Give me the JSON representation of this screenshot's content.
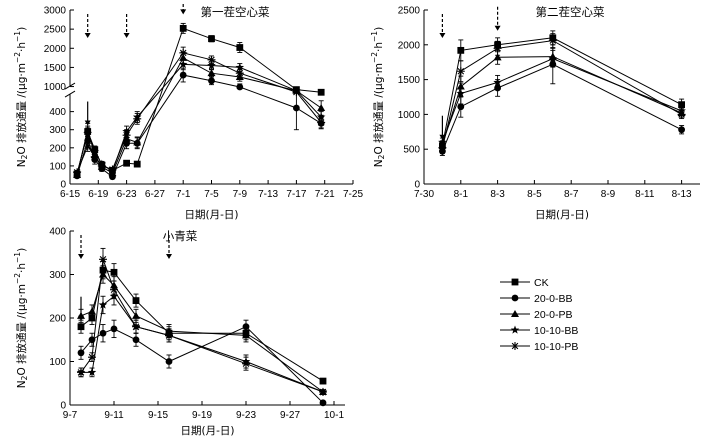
{
  "legend": [
    "CK",
    "20-0-BB",
    "20-0-PB",
    "10-10-BB",
    "10-10-PB"
  ],
  "chart_data": [
    {
      "type": "line",
      "title": "第一茬空心菜",
      "xlabel": "日期(月-日)",
      "ylabel": "N2O排放通量/(μg·m⁻²·h⁻¹)",
      "ylabel_parts": [
        "N",
        "2",
        "O 排放通量 /(μg·m",
        "−2",
        "·h",
        "−1",
        ")"
      ],
      "xticks": [
        {
          "v": 0,
          "label": "6-15"
        },
        {
          "v": 4,
          "label": "6-19"
        },
        {
          "v": 8,
          "label": "6-23"
        },
        {
          "v": 12,
          "label": "6-27"
        },
        {
          "v": 16,
          "label": "7-1"
        },
        {
          "v": 20,
          "label": "7-5"
        },
        {
          "v": 24,
          "label": "7-9"
        },
        {
          "v": 28,
          "label": "7-13"
        },
        {
          "v": 32,
          "label": "7-17"
        },
        {
          "v": 36,
          "label": "7-21"
        },
        {
          "v": 40,
          "label": "7-25"
        }
      ],
      "xlim": [
        0,
        40
      ],
      "ylim": [
        0,
        3000
      ],
      "y_break": [
        500,
        1000
      ],
      "yticks": [
        0,
        100,
        200,
        300,
        400,
        1000,
        1500,
        2000,
        2500,
        3000
      ],
      "ytick_labels": [
        "0",
        "100",
        "200",
        "300",
        "400",
        "1000",
        "1500",
        "2000",
        "2500",
        "3000"
      ],
      "arrows": [
        {
          "x": 2.5,
          "type": "solid"
        },
        {
          "x": 2.5,
          "type": "dashed"
        },
        {
          "x": 8,
          "type": "dashed"
        },
        {
          "x": 16,
          "type": "dashed"
        }
      ],
      "series": [
        {
          "name": "CK",
          "x": [
            1,
            2.5,
            3.5,
            4.5,
            6,
            8,
            9.5,
            16,
            20,
            24,
            32,
            35.5
          ],
          "y": [
            55,
            290,
            190,
            105,
            75,
            115,
            110,
            2520,
            2250,
            2020,
            780,
            590
          ],
          "err": [
            10,
            30,
            20,
            15,
            10,
            10,
            10,
            130,
            80,
            130,
            60,
            20
          ]
        },
        {
          "name": "20-0-BB",
          "x": [
            1,
            2.5,
            3.5,
            4.5,
            6,
            8,
            9.5,
            16,
            20,
            24,
            32,
            35.5
          ],
          "y": [
            45,
            240,
            135,
            85,
            40,
            225,
            225,
            1300,
            1150,
            970,
            420,
            335
          ],
          "err": [
            10,
            40,
            25,
            15,
            8,
            30,
            30,
            180,
            100,
            100,
            120,
            30
          ]
        },
        {
          "name": "20-0-PB",
          "x": [
            1,
            2.5,
            3.5,
            4.5,
            6,
            8,
            9.5,
            16,
            20,
            24,
            32,
            35.5
          ],
          "y": [
            50,
            300,
            160,
            95,
            60,
            250,
            230,
            1750,
            1350,
            1250,
            700,
            420
          ],
          "err": [
            10,
            35,
            20,
            15,
            10,
            25,
            30,
            150,
            90,
            110,
            60,
            40
          ]
        },
        {
          "name": "10-10-BB",
          "x": [
            1,
            2.5,
            3.5,
            4.5,
            6,
            8,
            9.5,
            16,
            20,
            24,
            32,
            35.5
          ],
          "y": [
            60,
            280,
            180,
            110,
            70,
            290,
            370,
            1580,
            1550,
            1500,
            700,
            370
          ],
          "err": [
            10,
            30,
            20,
            15,
            10,
            30,
            30,
            140,
            90,
            100,
            50,
            30
          ]
        },
        {
          "name": "10-10-PB",
          "x": [
            1,
            2.5,
            3.5,
            4.5,
            6,
            8,
            9.5,
            16,
            20,
            24,
            32,
            35.5
          ],
          "y": [
            65,
            210,
            150,
            100,
            80,
            270,
            360,
            1880,
            1700,
            1350,
            600,
            340
          ],
          "err": [
            10,
            30,
            20,
            15,
            10,
            30,
            30,
            150,
            100,
            100,
            50,
            30
          ]
        }
      ]
    },
    {
      "type": "line",
      "title": "第二茬空心菜",
      "xlabel": "日期(月-日)",
      "ylabel": "N2O排放通量/(μg·m⁻²·h⁻¹)",
      "ylabel_parts": [
        "N",
        "2",
        "O 排放通量 /(μg·m",
        "−2",
        "·h",
        "−1",
        ")"
      ],
      "xticks": [
        {
          "v": 0,
          "label": "7-30"
        },
        {
          "v": 2,
          "label": "8-1"
        },
        {
          "v": 4,
          "label": "8-3"
        },
        {
          "v": 6,
          "label": "8-5"
        },
        {
          "v": 8,
          "label": "8-7"
        },
        {
          "v": 10,
          "label": "8-9"
        },
        {
          "v": 12,
          "label": "8-11"
        },
        {
          "v": 14,
          "label": "8-13"
        }
      ],
      "xlim": [
        0,
        15
      ],
      "ylim": [
        0,
        2500
      ],
      "yticks": [
        0,
        500,
        1000,
        1500,
        2000,
        2500
      ],
      "ytick_labels": [
        "0",
        "500",
        "1000",
        "1500",
        "2000",
        "2500"
      ],
      "arrows": [
        {
          "x": 1,
          "type": "solid"
        },
        {
          "x": 1,
          "type": "dashed"
        },
        {
          "x": 4,
          "type": "dashed"
        }
      ],
      "series": [
        {
          "name": "CK",
          "x": [
            1,
            2,
            4,
            7,
            14
          ],
          "y": [
            550,
            1920,
            2000,
            2100,
            1140
          ],
          "err": [
            60,
            150,
            100,
            100,
            80
          ]
        },
        {
          "name": "20-0-BB",
          "x": [
            1,
            2,
            4,
            7,
            14
          ],
          "y": [
            470,
            1110,
            1380,
            1720,
            780
          ],
          "err": [
            60,
            150,
            120,
            280,
            60
          ]
        },
        {
          "name": "20-0-PB",
          "x": [
            1,
            2,
            4,
            7,
            14
          ],
          "y": [
            560,
            1400,
            1820,
            1830,
            1020
          ],
          "err": [
            60,
            150,
            100,
            120,
            60
          ]
        },
        {
          "name": "10-10-BB",
          "x": [
            1,
            2,
            4,
            7,
            14
          ],
          "y": [
            600,
            1300,
            1460,
            1800,
            1050
          ],
          "err": [
            60,
            150,
            100,
            120,
            60
          ]
        },
        {
          "name": "10-10-PB",
          "x": [
            1,
            2,
            4,
            7,
            14
          ],
          "y": [
            520,
            1620,
            1950,
            2060,
            1000
          ],
          "err": [
            60,
            150,
            100,
            100,
            60
          ]
        }
      ]
    },
    {
      "type": "line",
      "title": "小青菜",
      "xlabel": "日期(月-日)",
      "ylabel": "N2O排放通量/(μg·m⁻²·h⁻¹)",
      "ylabel_parts": [
        "N",
        "2",
        "O 排放通量 /(μg·m",
        "−2",
        "·h",
        "−1",
        ")"
      ],
      "xticks": [
        {
          "v": 0,
          "label": "9-7"
        },
        {
          "v": 4,
          "label": "9-11"
        },
        {
          "v": 8,
          "label": "9-15"
        },
        {
          "v": 12,
          "label": "9-19"
        },
        {
          "v": 16,
          "label": "9-23"
        },
        {
          "v": 20,
          "label": "9-27"
        },
        {
          "v": 24,
          "label": "10-1"
        }
      ],
      "xlim": [
        0,
        25
      ],
      "ylim": [
        0,
        400
      ],
      "yticks": [
        0,
        100,
        200,
        300,
        400
      ],
      "ytick_labels": [
        "0",
        "100",
        "200",
        "300",
        "400"
      ],
      "arrows": [
        {
          "x": 1,
          "type": "solid"
        },
        {
          "x": 1,
          "type": "dashed"
        },
        {
          "x": 9,
          "type": "dashed"
        }
      ],
      "series": [
        {
          "name": "CK",
          "x": [
            1,
            2,
            3,
            4,
            6,
            9,
            16,
            23
          ],
          "y": [
            180,
            200,
            310,
            305,
            240,
            165,
            165,
            55
          ],
          "err": [
            15,
            15,
            20,
            20,
            15,
            15,
            15,
            5
          ]
        },
        {
          "name": "20-0-BB",
          "x": [
            1,
            2,
            3,
            4,
            6,
            9,
            16,
            23
          ],
          "y": [
            120,
            150,
            165,
            175,
            150,
            100,
            180,
            5
          ],
          "err": [
            15,
            15,
            20,
            20,
            15,
            15,
            15,
            3
          ]
        },
        {
          "name": "20-0-PB",
          "x": [
            1,
            2,
            3,
            4,
            6,
            9,
            16,
            23
          ],
          "y": [
            205,
            215,
            300,
            275,
            205,
            170,
            160,
            30
          ],
          "err": [
            15,
            15,
            20,
            20,
            15,
            15,
            15,
            5
          ]
        },
        {
          "name": "10-10-BB",
          "x": [
            1,
            2,
            3,
            4,
            6,
            9,
            16,
            23
          ],
          "y": [
            75,
            75,
            230,
            250,
            180,
            160,
            100,
            30
          ],
          "err": [
            10,
            10,
            20,
            20,
            15,
            15,
            15,
            5
          ]
        },
        {
          "name": "10-10-PB",
          "x": [
            1,
            2,
            3,
            4,
            6,
            9,
            16,
            23
          ],
          "y": [
            75,
            110,
            335,
            265,
            180,
            160,
            95,
            30
          ],
          "err": [
            10,
            10,
            25,
            20,
            15,
            15,
            15,
            5
          ]
        }
      ]
    }
  ]
}
